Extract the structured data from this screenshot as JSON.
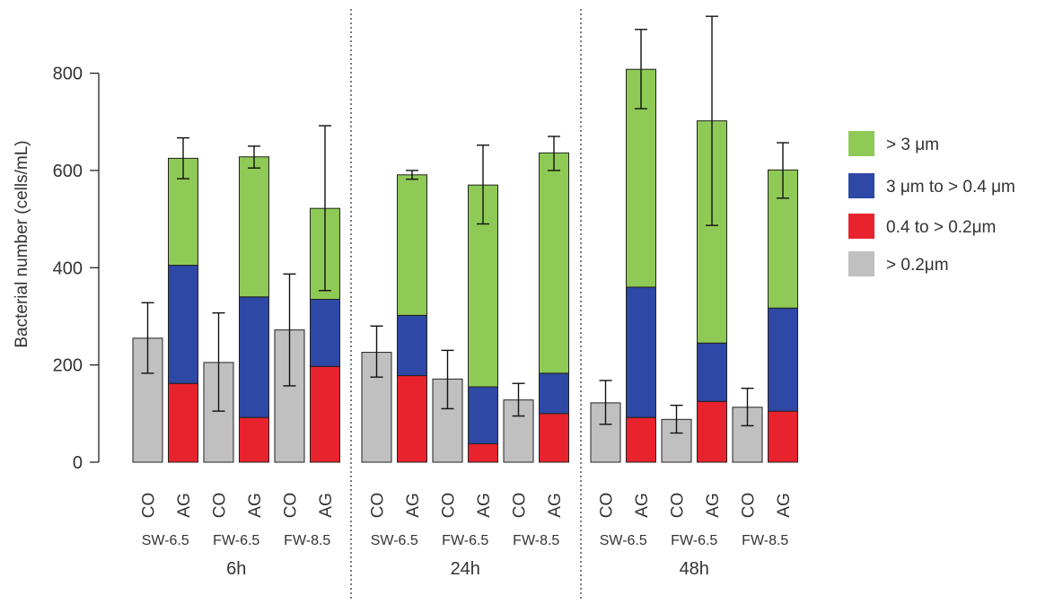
{
  "chart_data": {
    "type": "bar",
    "stacked": true,
    "ylabel": "Bacterial number (cells/mL)",
    "ylim": [
      0,
      900
    ],
    "yticks": [
      0,
      200,
      400,
      600,
      800
    ],
    "legend": {
      "placement": "right",
      "entries": [
        {
          "label": "> 3 μm",
          "color": "#8fca56"
        },
        {
          "label": "3 μm to > 0.4 μm",
          "color": "#2e48a6"
        },
        {
          "label": "0.4 to > 0.2μm",
          "color": "#e8232d"
        },
        {
          "label": "> 0.2μm",
          "color": "#c0c0c0"
        }
      ]
    },
    "segment_colors": {
      "total": "#c0c0c0",
      "small": "#e8232d",
      "mid": "#2e48a6",
      "large": "#8fca56"
    },
    "groups": [
      {
        "time": "6h",
        "pairs": [
          {
            "label": "SW-6.5",
            "CO": {
              "total": 255,
              "err": [
                183,
                328
              ]
            },
            "AG": {
              "small": 162,
              "mid": 405,
              "large": 625,
              "err": [
                583,
                667
              ]
            }
          },
          {
            "label": "FW-6.5",
            "CO": {
              "total": 205,
              "err": [
                105,
                307
              ]
            },
            "AG": {
              "small": 92,
              "mid": 340,
              "large": 628,
              "err": [
                605,
                650
              ]
            }
          },
          {
            "label": "FW-8.5",
            "CO": {
              "total": 272,
              "err": [
                157,
                387
              ]
            },
            "AG": {
              "small": 197,
              "mid": 335,
              "large": 522,
              "err": [
                353,
                692
              ]
            }
          }
        ]
      },
      {
        "time": "24h",
        "pairs": [
          {
            "label": "SW-6.5",
            "CO": {
              "total": 226,
              "err": [
                175,
                280
              ]
            },
            "AG": {
              "small": 178,
              "mid": 302,
              "large": 591,
              "err": [
                582,
                600
              ]
            }
          },
          {
            "label": "FW-6.5",
            "CO": {
              "total": 171,
              "err": [
                110,
                230
              ]
            },
            "AG": {
              "small": 38,
              "mid": 155,
              "large": 570,
              "err": [
                490,
                652
              ]
            }
          },
          {
            "label": "FW-8.5",
            "CO": {
              "total": 128,
              "err": [
                95,
                162
              ]
            },
            "AG": {
              "small": 100,
              "mid": 183,
              "large": 636,
              "err": [
                600,
                670
              ]
            }
          }
        ]
      },
      {
        "time": "48h",
        "pairs": [
          {
            "label": "SW-6.5",
            "CO": {
              "total": 122,
              "err": [
                78,
                168
              ]
            },
            "AG": {
              "small": 92,
              "mid": 360,
              "large": 808,
              "err": [
                727,
                890
              ]
            }
          },
          {
            "label": "FW-6.5",
            "CO": {
              "total": 88,
              "err": [
                60,
                117
              ]
            },
            "AG": {
              "small": 125,
              "mid": 245,
              "large": 702,
              "err": [
                487,
                917
              ]
            }
          },
          {
            "label": "FW-8.5",
            "CO": {
              "total": 113,
              "err": [
                75,
                152
              ]
            },
            "AG": {
              "small": 105,
              "mid": 317,
              "large": 601,
              "err": [
                543,
                657
              ]
            }
          }
        ]
      }
    ],
    "bar_labels": [
      "CO",
      "AG"
    ]
  }
}
